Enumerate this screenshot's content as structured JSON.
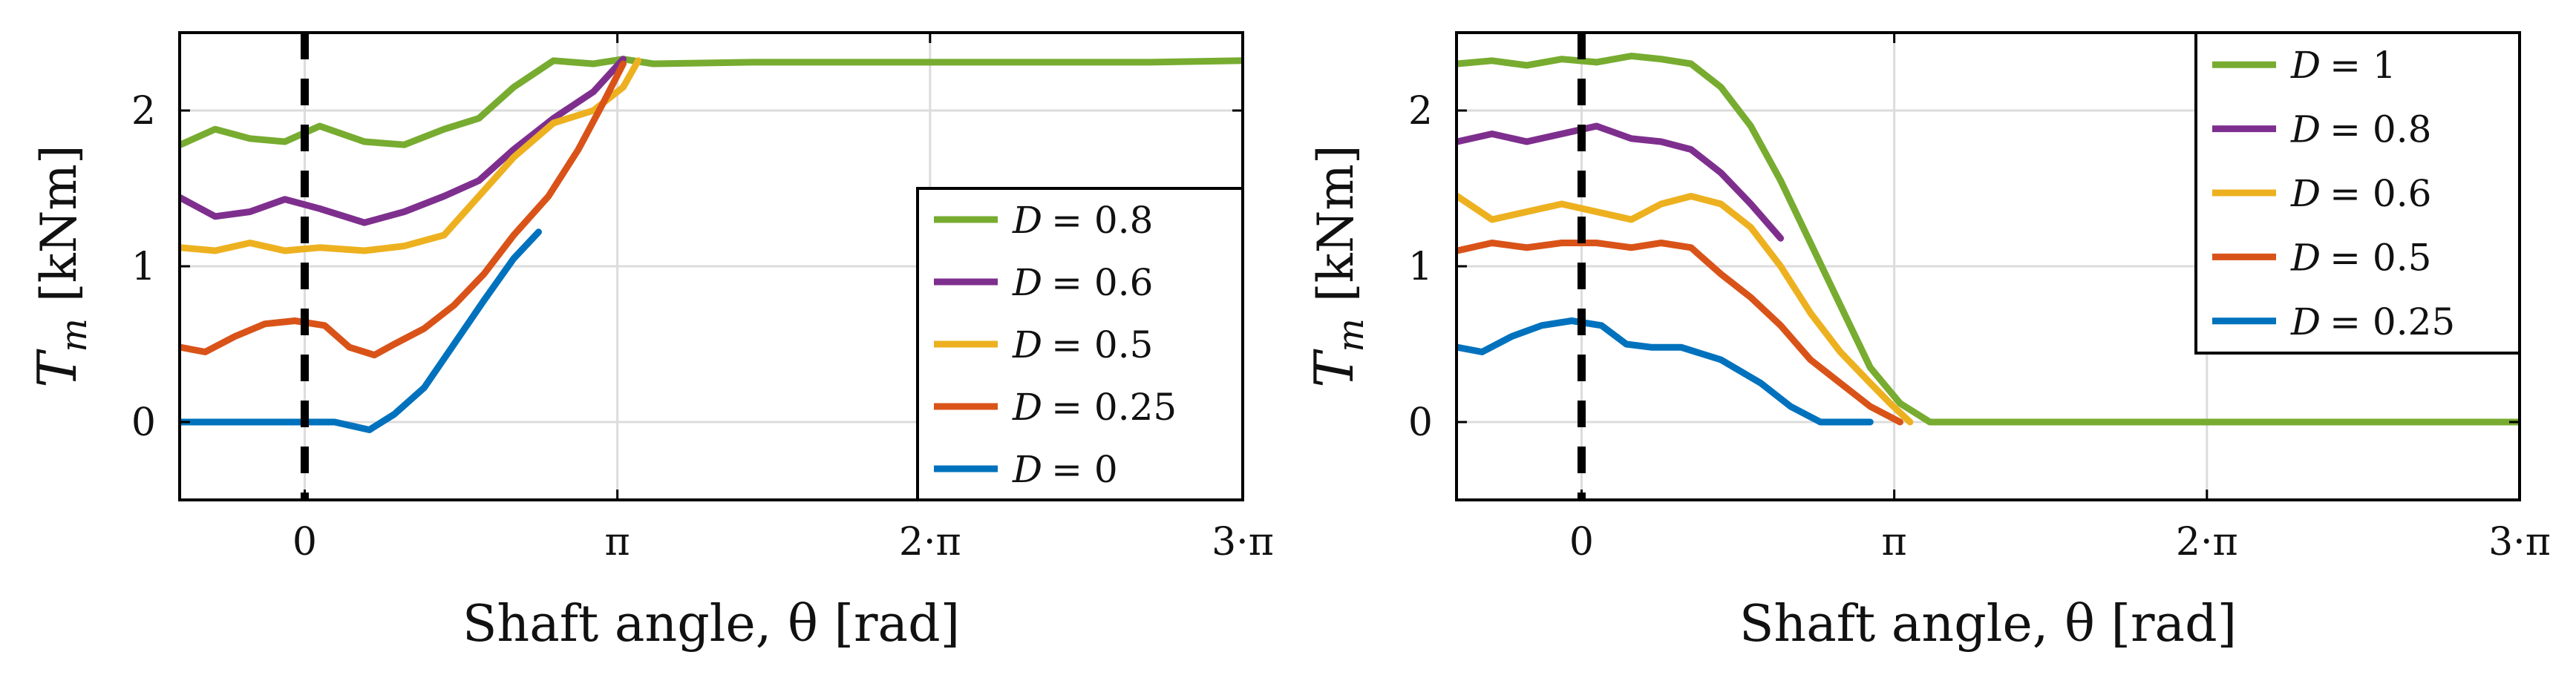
{
  "chart_data": [
    {
      "type": "line",
      "panel": "left",
      "xlabel": "Shaft angle, θ [rad]",
      "ylabel_main": "T",
      "ylabel_sub": "m",
      "ylabel_unit": "[kNm]",
      "xlim": [
        -1.2566,
        9.4248
      ],
      "ylim": [
        -0.5,
        2.5
      ],
      "xticks": [
        0,
        3.1416,
        6.2832,
        9.4248
      ],
      "xtick_labels": [
        "0",
        "π",
        "2·π",
        "3·π"
      ],
      "yticks": [
        0,
        1,
        2
      ],
      "ytick_labels": [
        "0",
        "1",
        "2"
      ],
      "grid": true,
      "vline_x": 0,
      "legend_position": "lower-right",
      "series": [
        {
          "name": "D = 0.8",
          "color": "#77ac30",
          "x": [
            -1.25,
            -0.9,
            -0.55,
            -0.2,
            0.15,
            0.6,
            1.0,
            1.4,
            1.75,
            2.1,
            2.5,
            2.9,
            3.2,
            3.5,
            4.5,
            5.5,
            6.5,
            7.5,
            8.5,
            9.42
          ],
          "y": [
            1.78,
            1.88,
            1.82,
            1.8,
            1.9,
            1.8,
            1.78,
            1.88,
            1.95,
            2.15,
            2.32,
            2.3,
            2.33,
            2.3,
            2.31,
            2.31,
            2.31,
            2.31,
            2.31,
            2.32
          ]
        },
        {
          "name": "D = 0.6",
          "color": "#7e2f8e",
          "x": [
            -1.25,
            -0.9,
            -0.55,
            -0.2,
            0.15,
            0.6,
            1.0,
            1.4,
            1.75,
            2.1,
            2.5,
            2.9,
            3.2
          ],
          "y": [
            1.44,
            1.32,
            1.35,
            1.43,
            1.37,
            1.28,
            1.35,
            1.45,
            1.55,
            1.75,
            1.95,
            2.12,
            2.33
          ]
        },
        {
          "name": "D = 0.5",
          "color": "#edb120",
          "x": [
            -1.25,
            -0.9,
            -0.55,
            -0.2,
            0.15,
            0.6,
            1.0,
            1.4,
            1.75,
            2.1,
            2.5,
            2.9,
            3.2,
            3.35
          ],
          "y": [
            1.12,
            1.1,
            1.15,
            1.1,
            1.12,
            1.1,
            1.13,
            1.2,
            1.45,
            1.7,
            1.92,
            2.0,
            2.15,
            2.32
          ]
        },
        {
          "name": "D = 0.25",
          "color": "#d95319",
          "x": [
            -1.25,
            -1.0,
            -0.7,
            -0.4,
            -0.1,
            0.2,
            0.45,
            0.7,
            0.9,
            1.2,
            1.5,
            1.8,
            2.1,
            2.45,
            2.75,
            3.0,
            3.2
          ],
          "y": [
            0.48,
            0.45,
            0.55,
            0.63,
            0.65,
            0.62,
            0.48,
            0.43,
            0.5,
            0.6,
            0.75,
            0.95,
            1.2,
            1.45,
            1.75,
            2.05,
            2.3
          ]
        },
        {
          "name": "D = 0",
          "color": "#0072bd",
          "x": [
            -1.25,
            -0.5,
            0.3,
            0.65,
            0.9,
            1.2,
            1.5,
            1.8,
            2.1,
            2.35
          ],
          "y": [
            0,
            0,
            0,
            -0.05,
            0.05,
            0.22,
            0.5,
            0.78,
            1.05,
            1.22
          ]
        }
      ]
    },
    {
      "type": "line",
      "panel": "right",
      "xlabel": "Shaft angle, θ [rad]",
      "ylabel_main": "T",
      "ylabel_sub": "m",
      "ylabel_unit": "[kNm]",
      "xlim": [
        -1.2566,
        9.4248
      ],
      "ylim": [
        -0.5,
        2.5
      ],
      "xticks": [
        0,
        3.1416,
        6.2832,
        9.4248
      ],
      "xtick_labels": [
        "0",
        "π",
        "2·π",
        "3·π"
      ],
      "yticks": [
        0,
        1,
        2
      ],
      "ytick_labels": [
        "0",
        "1",
        "2"
      ],
      "grid": true,
      "vline_x": 0,
      "legend_position": "top-right",
      "series": [
        {
          "name": "D = 1",
          "color": "#77ac30",
          "x": [
            -1.25,
            -0.9,
            -0.55,
            -0.2,
            0.15,
            0.5,
            0.8,
            1.1,
            1.4,
            1.7,
            2.0,
            2.3,
            2.6,
            2.9,
            3.2,
            3.5,
            4.5,
            5.5,
            6.5,
            7.5,
            8.5,
            9.42
          ],
          "y": [
            2.3,
            2.32,
            2.29,
            2.33,
            2.31,
            2.35,
            2.33,
            2.3,
            2.15,
            1.9,
            1.55,
            1.15,
            0.75,
            0.35,
            0.12,
            0,
            0,
            0,
            0,
            0,
            0,
            0
          ]
        },
        {
          "name": "D = 0.8",
          "color": "#7e2f8e",
          "x": [
            -1.25,
            -0.9,
            -0.55,
            -0.2,
            0.15,
            0.5,
            0.8,
            1.1,
            1.4,
            1.7,
            2.0
          ],
          "y": [
            1.8,
            1.85,
            1.8,
            1.85,
            1.9,
            1.82,
            1.8,
            1.75,
            1.6,
            1.4,
            1.18
          ]
        },
        {
          "name": "D = 0.6",
          "color": "#edb120",
          "x": [
            -1.25,
            -0.9,
            -0.55,
            -0.2,
            0.15,
            0.5,
            0.8,
            1.1,
            1.4,
            1.7,
            2.0,
            2.3,
            2.6,
            2.9,
            3.1,
            3.3
          ],
          "y": [
            1.45,
            1.3,
            1.35,
            1.4,
            1.35,
            1.3,
            1.4,
            1.45,
            1.4,
            1.25,
            1.0,
            0.7,
            0.45,
            0.25,
            0.12,
            0
          ]
        },
        {
          "name": "D = 0.5",
          "color": "#d95319",
          "x": [
            -1.25,
            -0.9,
            -0.55,
            -0.2,
            0.15,
            0.5,
            0.8,
            1.1,
            1.4,
            1.7,
            2.0,
            2.3,
            2.6,
            2.9,
            3.2
          ],
          "y": [
            1.1,
            1.15,
            1.12,
            1.15,
            1.15,
            1.12,
            1.15,
            1.12,
            0.95,
            0.8,
            0.62,
            0.4,
            0.25,
            0.1,
            0
          ]
        },
        {
          "name": "D = 0.25",
          "color": "#0072bd",
          "x": [
            -1.25,
            -1.0,
            -0.7,
            -0.4,
            -0.1,
            0.2,
            0.45,
            0.7,
            1.0,
            1.4,
            1.8,
            2.1,
            2.4,
            2.9
          ],
          "y": [
            0.48,
            0.45,
            0.55,
            0.62,
            0.65,
            0.62,
            0.5,
            0.48,
            0.48,
            0.4,
            0.25,
            0.1,
            0,
            0
          ]
        }
      ]
    }
  ]
}
